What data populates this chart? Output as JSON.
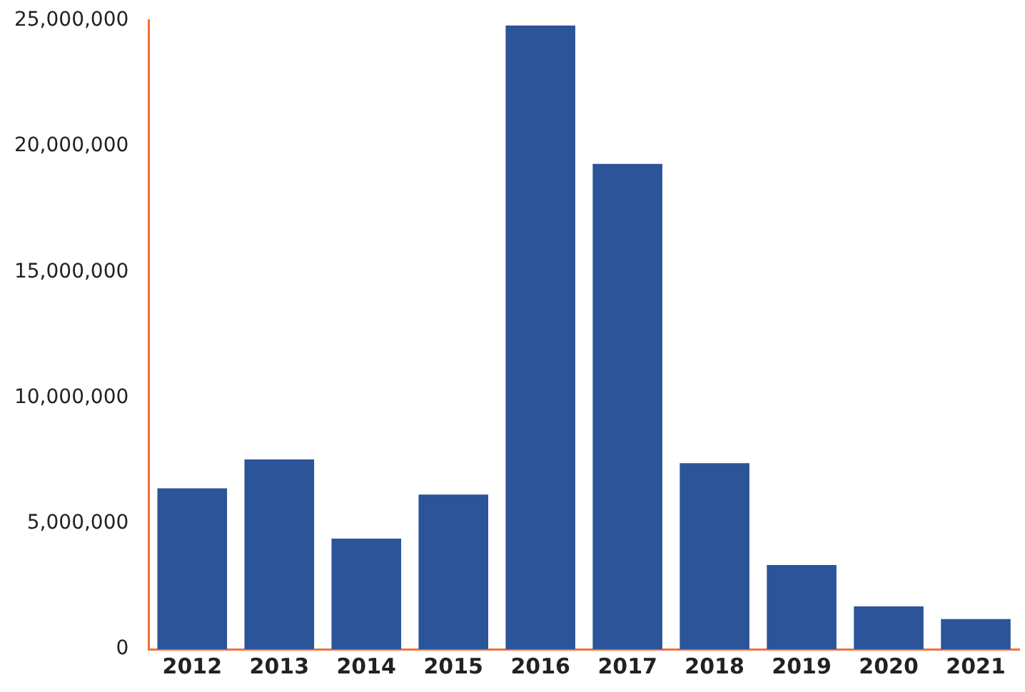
{
  "chart_data": {
    "type": "bar",
    "categories": [
      "2012",
      "2013",
      "2014",
      "2015",
      "2016",
      "2017",
      "2018",
      "2019",
      "2020",
      "2021"
    ],
    "values": [
      6400000.0,
      7550000.0,
      4400000.0,
      6150000.0,
      24800000.0,
      19300000.0,
      7400000.0,
      3350000.0,
      1700000.0,
      1200000.0
    ],
    "color": "#2b5499",
    "ylim": [
      0,
      25000000
    ],
    "yticks": [
      {
        "value": 0,
        "label": "0"
      },
      {
        "value": 5000000,
        "label": "5,000,000"
      },
      {
        "value": 10000000,
        "label": "10,000,000"
      },
      {
        "value": 15000000,
        "label": "15,000,000"
      },
      {
        "value": 20000000,
        "label": "20,000,000"
      },
      {
        "value": 25000000,
        "label": "25,000,000"
      }
    ],
    "grid": false,
    "legend": false
  }
}
